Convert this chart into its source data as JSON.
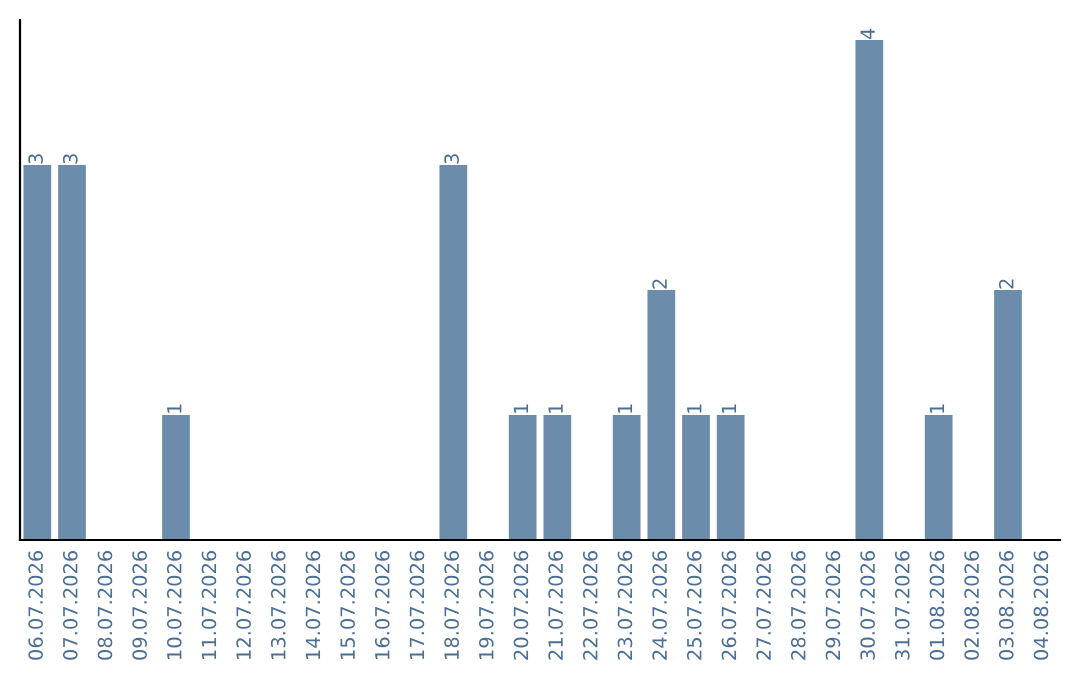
{
  "chart_data": {
    "type": "bar",
    "color": "#6b8cab",
    "categories": [
      "06.07.2026",
      "07.07.2026",
      "08.07.2026",
      "09.07.2026",
      "10.07.2026",
      "11.07.2026",
      "12.07.2026",
      "13.07.2026",
      "14.07.2026",
      "15.07.2026",
      "16.07.2026",
      "17.07.2026",
      "18.07.2026",
      "19.07.2026",
      "20.07.2026",
      "21.07.2026",
      "22.07.2026",
      "23.07.2026",
      "24.07.2026",
      "25.07.2026",
      "26.07.2026",
      "27.07.2026",
      "28.07.2026",
      "29.07.2026",
      "30.07.2026",
      "31.07.2026",
      "01.08.2026",
      "02.08.2026",
      "03.08.2026",
      "04.08.2026"
    ],
    "values": [
      3,
      3,
      0,
      0,
      1,
      0,
      0,
      0,
      0,
      0,
      0,
      0,
      3,
      0,
      1,
      1,
      0,
      1,
      2,
      1,
      1,
      0,
      0,
      0,
      4,
      0,
      1,
      0,
      2,
      0
    ],
    "value_labels": [
      "3",
      "3",
      null,
      null,
      "1",
      null,
      null,
      null,
      null,
      null,
      null,
      null,
      "3",
      null,
      "1",
      "1",
      null,
      "1",
      "2",
      "1",
      "1",
      null,
      null,
      null,
      "4",
      null,
      "1",
      null,
      "2",
      null
    ],
    "grid": false,
    "legend": false,
    "tick_labels": "x"
  }
}
